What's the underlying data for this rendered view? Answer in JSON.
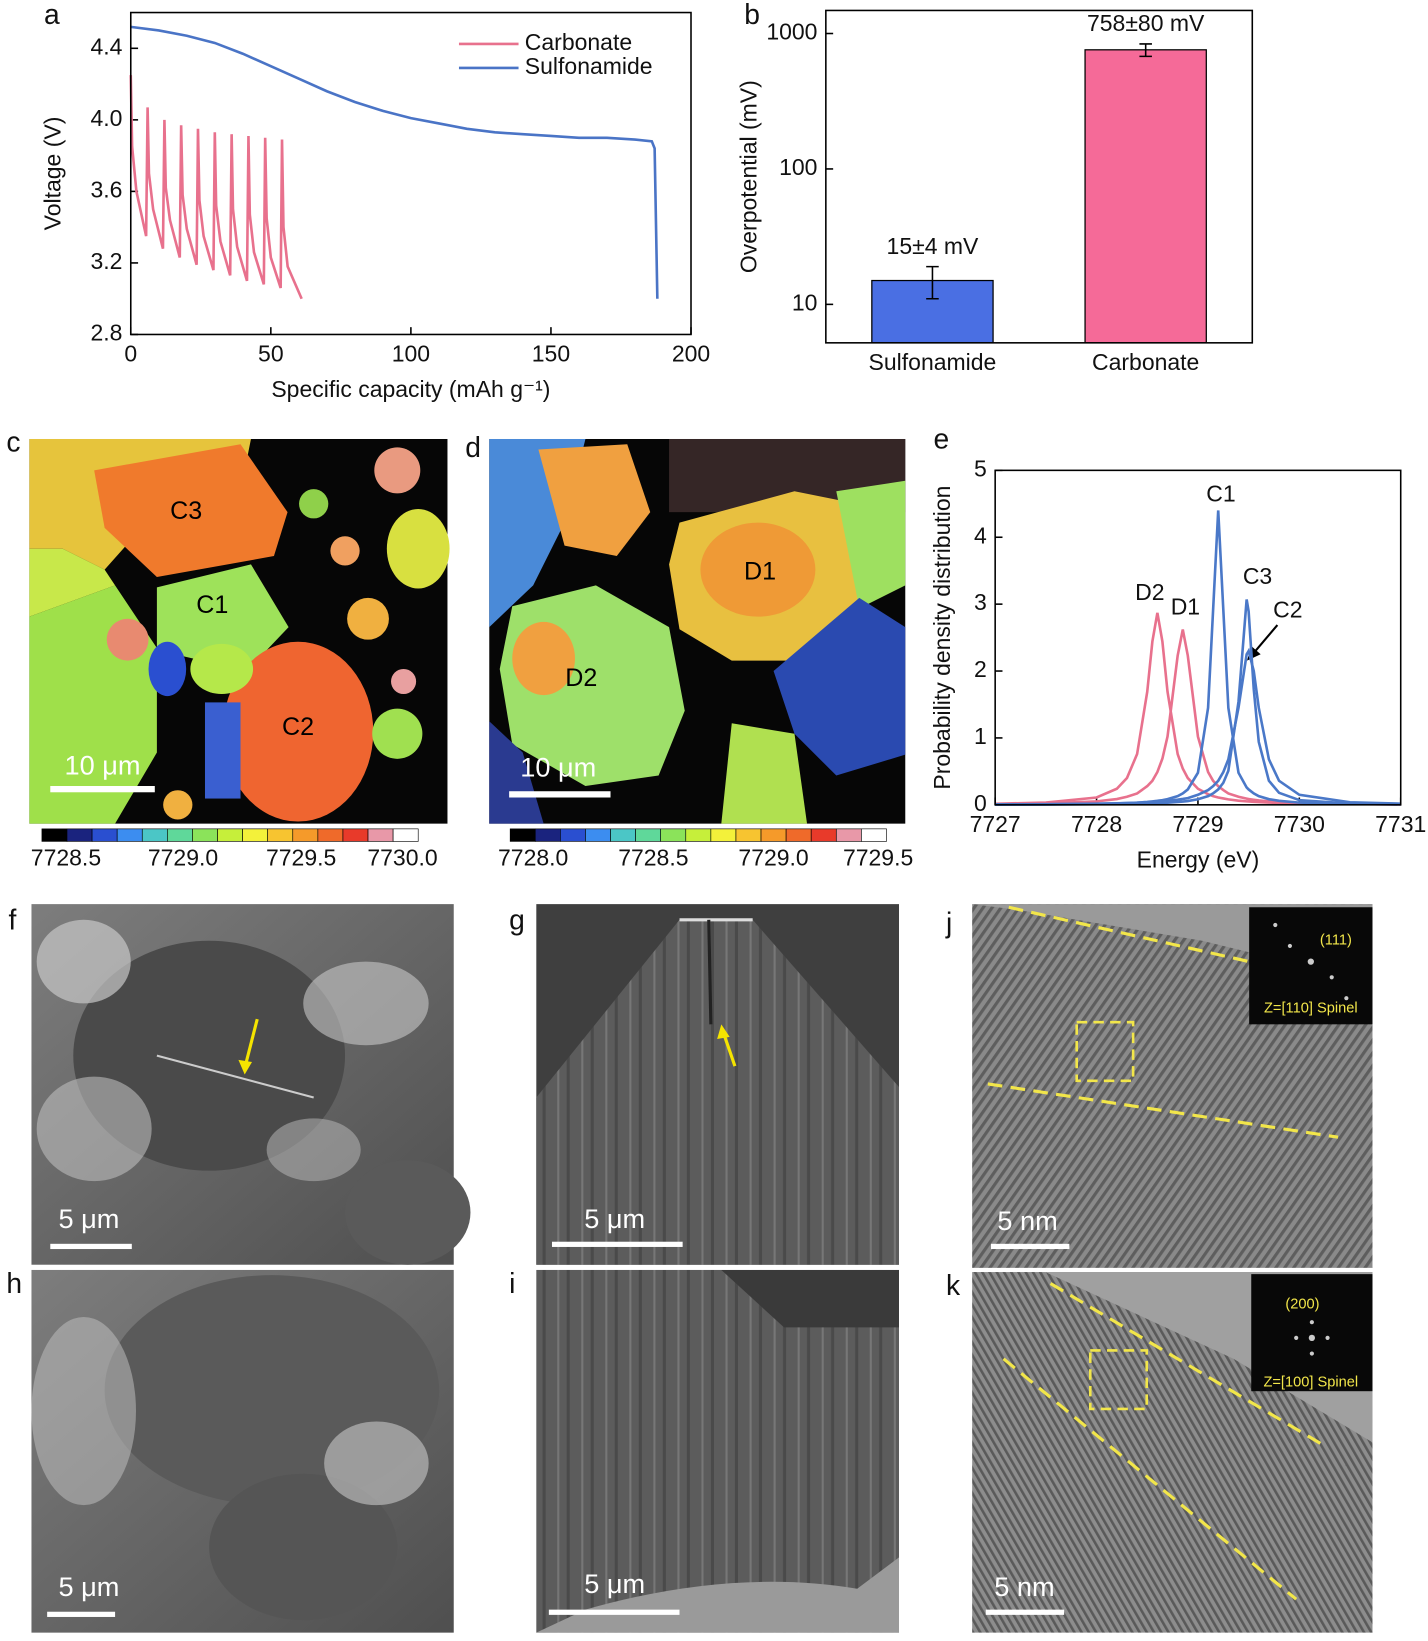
{
  "chart_data": [
    {
      "type": "line",
      "xlabel": "Specific capacity (mAh g⁻¹)",
      "ylabel": "Voltage (V)",
      "xlim": [
        0,
        200
      ],
      "ylim": [
        2.8,
        4.6
      ],
      "xticks": [
        0,
        50,
        100,
        150,
        200
      ],
      "yticks": [
        2.8,
        3.2,
        3.6,
        {
          "value": 4,
          "label": "4.0"
        },
        4.4
      ],
      "legend": "upper right",
      "series": [
        {
          "name": "Carbonate",
          "color": "#e8718d",
          "x": [
            0,
            0.5,
            2,
            5.5,
            6,
            6.5,
            8,
            11.5,
            12,
            12.5,
            14,
            17.5,
            18,
            18.5,
            20,
            23.5,
            24,
            24.5,
            26,
            29.5,
            30,
            30.5,
            32,
            35.5,
            36,
            36.5,
            38,
            41.5,
            42,
            42.5,
            44,
            47.5,
            48,
            48.5,
            50,
            53.5,
            54,
            54.5,
            56,
            61
          ],
          "values": [
            4.25,
            3.85,
            3.6,
            3.35,
            4.07,
            3.7,
            3.5,
            3.28,
            4.0,
            3.62,
            3.44,
            3.23,
            3.97,
            3.58,
            3.39,
            3.19,
            3.95,
            3.55,
            3.35,
            3.16,
            3.93,
            3.52,
            3.32,
            3.13,
            3.92,
            3.5,
            3.29,
            3.1,
            3.91,
            3.47,
            3.26,
            3.08,
            3.9,
            3.45,
            3.23,
            3.06,
            3.89,
            3.4,
            3.18,
            3.0
          ]
        },
        {
          "name": "Sulfonamide",
          "color": "#4a74c6",
          "x": [
            0,
            10,
            20,
            30,
            40,
            50,
            60,
            70,
            80,
            90,
            100,
            110,
            120,
            130,
            140,
            150,
            160,
            170,
            180,
            186,
            187,
            188
          ],
          "values": [
            4.52,
            4.5,
            4.47,
            4.43,
            4.37,
            4.3,
            4.23,
            4.16,
            4.1,
            4.05,
            4.01,
            3.98,
            3.95,
            3.93,
            3.92,
            3.91,
            3.9,
            3.9,
            3.89,
            3.88,
            3.84,
            3.0
          ]
        }
      ]
    },
    {
      "type": "bar",
      "ylabel": "Overpotential (mV)",
      "log": true,
      "ylim": [
        5.2,
        1480
      ],
      "yticks": [
        10,
        100,
        1000
      ],
      "categories": [
        "Sulfonamide",
        "Carbonate"
      ],
      "values": [
        15,
        758
      ],
      "errors": [
        4,
        80
      ],
      "value_labels": [
        "15±4 mV",
        "758±80 mV"
      ],
      "colors": [
        "#4a6fe3",
        "#f56a98"
      ]
    },
    {
      "type": "line",
      "xlabel": "Energy (eV)",
      "ylabel": "Probability density distribution",
      "xlim": [
        7727,
        7731
      ],
      "ylim": [
        0,
        5
      ],
      "xticks": [
        7727,
        7728,
        7729,
        7730,
        7731
      ],
      "yticks": [
        0,
        1,
        2,
        3,
        4,
        5
      ],
      "x": [
        7727,
        7727.5,
        7728,
        7728.2,
        7728.3,
        7728.4,
        7728.5,
        7728.55,
        7728.6,
        7728.65,
        7728.7,
        7728.8,
        7728.85,
        7728.9,
        7729,
        7729.1,
        7729.15,
        7729.2,
        7729.25,
        7729.3,
        7729.4,
        7729.48,
        7729.5,
        7729.55,
        7729.6,
        7729.7,
        7729.8,
        7730,
        7730.5,
        7731
      ],
      "series": [
        {
          "name": "D2",
          "color": "#e8718d",
          "values": [
            0.016,
            0.034,
            0.11,
            0.24,
            0.4,
            0.76,
            1.69,
            2.44,
            2.87,
            2.44,
            1.69,
            0.76,
            0.54,
            0.4,
            0.24,
            0.16,
            0.13,
            0.11,
            0.095,
            0.082,
            0.063,
            0.052,
            0.05,
            0.045,
            0.041,
            0.034,
            0.028,
            0.021,
            0.011,
            0.007
          ]
        },
        {
          "name": "D1",
          "color": "#e8718d",
          "values": [
            0.011,
            0.021,
            0.051,
            0.086,
            0.12,
            0.17,
            0.28,
            0.36,
            0.49,
            0.69,
            1.02,
            2.23,
            2.62,
            2.23,
            1.02,
            0.49,
            0.36,
            0.28,
            0.22,
            0.17,
            0.12,
            0.092,
            0.086,
            0.075,
            0.065,
            0.051,
            0.041,
            0.028,
            0.014,
            0.008
          ]
        },
        {
          "name": "C1",
          "color": "#4a78c8",
          "values": [
            0.0045,
            0.0075,
            0.015,
            0.021,
            0.026,
            0.033,
            0.044,
            0.051,
            0.059,
            0.07,
            0.085,
            0.13,
            0.17,
            0.23,
            0.48,
            1.45,
            2.91,
            4.4,
            2.91,
            1.45,
            0.48,
            0.26,
            0.23,
            0.17,
            0.13,
            0.085,
            0.059,
            0.033,
            0.013,
            0.0067
          ]
        },
        {
          "name": "C3",
          "color": "#4a78c8",
          "values": [
            0.0032,
            0.005,
            0.009,
            0.012,
            0.014,
            0.017,
            0.02,
            0.023,
            0.025,
            0.028,
            0.032,
            0.042,
            0.049,
            0.057,
            0.083,
            0.13,
            0.17,
            0.23,
            0.33,
            0.51,
            1.54,
            3.07,
            2.89,
            1.73,
            0.94,
            0.36,
            0.18,
            0.071,
            0.019,
            0.0085
          ]
        },
        {
          "name": "C2",
          "color": "#4a78c8",
          "values": [
            0.0062,
            0.0097,
            0.017,
            0.023,
            0.027,
            0.032,
            0.038,
            0.042,
            0.047,
            0.053,
            0.059,
            0.077,
            0.088,
            0.1,
            0.15,
            0.22,
            0.28,
            0.36,
            0.49,
            0.68,
            1.45,
            2.25,
            2.3,
            2.0,
            1.45,
            0.68,
            0.36,
            0.15,
            0.038,
            0.017
          ]
        }
      ]
    }
  ],
  "panel_labels": [
    "a",
    "b",
    "c",
    "d",
    "e",
    "f",
    "g",
    "h",
    "i",
    "j",
    "k"
  ],
  "maps": [
    {
      "regions": [
        "C3",
        "C1",
        "C2"
      ],
      "scale_bar": "10 μm",
      "colorbar_ticks": [
        "7728.5",
        "7729.0",
        "7729.5",
        "7730.0"
      ]
    },
    {
      "regions": [
        "D1",
        "D2"
      ],
      "scale_bar": "10 μm",
      "colorbar_ticks": [
        "7728.0",
        "7728.5",
        "7729.0",
        "7729.5"
      ]
    }
  ],
  "micrographs": [
    {
      "scale_bar": "5 μm"
    },
    {
      "scale_bar": "5 μm"
    },
    {
      "scale_bar": "5 μm"
    },
    {
      "scale_bar": "5 μm"
    },
    {
      "scale_bar": "5 nm",
      "inset_plane": "(111)",
      "inset_zone": "Z=[110] Spinel"
    },
    {
      "scale_bar": "5 nm",
      "inset_plane": "(200)",
      "inset_zone": "Z=[100] Spinel"
    }
  ]
}
